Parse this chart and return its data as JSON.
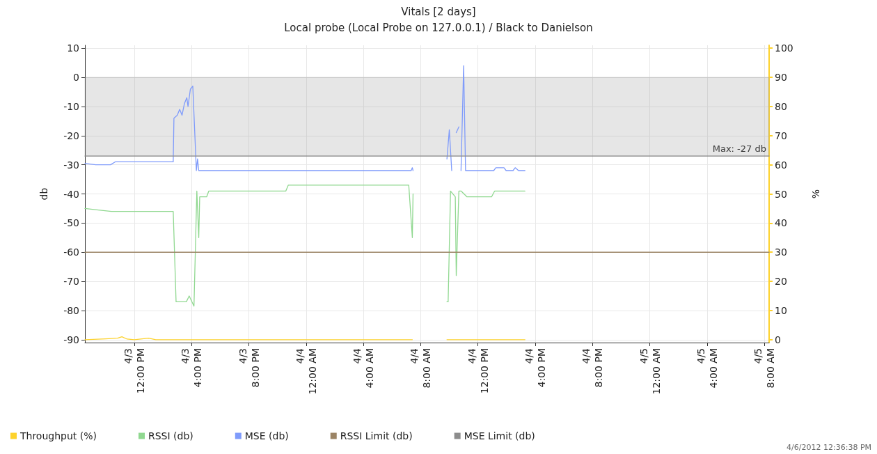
{
  "chart_data": {
    "type": "line",
    "title": "Vitals [2 days]",
    "subtitle": "Local probe (Local Probe on 127.0.0.1) / Black to Danielson",
    "ylabel": "db",
    "y2label": "%",
    "xlim": [
      "2012-04-03T08:33",
      "2012-04-05T08:20"
    ],
    "xticks": [
      {
        "value": "2012-04-03T12:00",
        "label": "4/3\n12:00 PM"
      },
      {
        "value": "2012-04-03T16:00",
        "label": "4/3\n4:00 PM"
      },
      {
        "value": "2012-04-03T20:00",
        "label": "4/3\n8:00 PM"
      },
      {
        "value": "2012-04-04T00:00",
        "label": "4/4\n12:00 AM"
      },
      {
        "value": "2012-04-04T04:00",
        "label": "4/4\n4:00 AM"
      },
      {
        "value": "2012-04-04T08:00",
        "label": "4/4\n8:00 AM"
      },
      {
        "value": "2012-04-04T12:00",
        "label": "4/4\n12:00 PM"
      },
      {
        "value": "2012-04-04T16:00",
        "label": "4/4\n4:00 PM"
      },
      {
        "value": "2012-04-04T20:00",
        "label": "4/4\n8:00 PM"
      },
      {
        "value": "2012-04-05T00:00",
        "label": "4/5\n12:00 AM"
      },
      {
        "value": "2012-04-05T04:00",
        "label": "4/5\n4:00 AM"
      },
      {
        "value": "2012-04-05T08:00",
        "label": "4/5\n8:00 AM"
      }
    ],
    "ylim": [
      -91,
      11
    ],
    "yticks": [
      -90,
      -80,
      -70,
      -60,
      -50,
      -40,
      -30,
      -20,
      -10,
      0,
      10
    ],
    "y2lim": [
      -1,
      101
    ],
    "y2ticks": [
      0,
      10,
      20,
      30,
      40,
      50,
      60,
      70,
      80,
      90,
      100
    ],
    "grid": true,
    "legend": "bottom left",
    "line_style": "solid",
    "series": [
      {
        "name": "Throughput (%)",
        "color": "#fdd22c",
        "axis": "y2",
        "x": [
          "2012-04-03T08:33",
          "2012-04-03T10:00",
          "2012-04-03T10:50",
          "2012-04-03T11:08",
          "2012-04-03T11:30",
          "2012-04-03T12:00",
          "2012-04-03T13:00",
          "2012-04-03T13:30",
          "2012-04-04T07:25",
          "2012-04-04T08:00",
          "2012-04-04T09:50",
          "2012-04-04T15:17"
        ],
        "values": [
          0,
          0.3,
          0.5,
          1,
          0.2,
          0,
          0.5,
          0,
          0,
          null,
          0,
          0
        ]
      },
      {
        "name": "RSSI (db)",
        "color": "#90d890",
        "x": [
          "2012-04-03T08:33",
          "2012-04-03T09:30",
          "2012-04-03T10:24",
          "2012-04-03T14:43",
          "2012-04-03T14:55",
          "2012-04-03T15:38",
          "2012-04-03T15:50",
          "2012-04-03T16:10",
          "2012-04-03T16:22",
          "2012-04-03T16:30",
          "2012-04-03T16:34",
          "2012-04-03T17:03",
          "2012-04-03T17:12",
          "2012-04-03T22:35",
          "2012-04-03T22:45",
          "2012-04-04T07:10",
          "2012-04-04T07:25",
          "2012-04-04T07:28",
          "2012-04-04T08:00",
          "2012-04-04T09:50",
          "2012-04-04T09:55",
          "2012-04-04T10:05",
          "2012-04-04T10:25",
          "2012-04-04T10:29",
          "2012-04-04T10:40",
          "2012-04-04T10:49",
          "2012-04-04T11:14",
          "2012-04-04T12:57",
          "2012-04-04T13:10",
          "2012-04-04T15:17"
        ],
        "values": [
          -45,
          -45.5,
          -46,
          -46,
          -77,
          -77,
          -75,
          -78.5,
          -39,
          -55,
          -41,
          -41,
          -39,
          -39,
          -37,
          -37,
          -55,
          -40,
          null,
          -77,
          -77,
          -39,
          -41,
          -68,
          -39,
          -39,
          -41,
          -41,
          -39,
          -39
        ]
      },
      {
        "name": "MSE (db)",
        "color": "#7f9bfb",
        "x": [
          "2012-04-03T08:33",
          "2012-04-03T09:18",
          "2012-04-03T10:20",
          "2012-04-03T10:40",
          "2012-04-03T14:43",
          "2012-04-03T14:46",
          "2012-04-03T15:00",
          "2012-04-03T15:10",
          "2012-04-03T15:20",
          "2012-04-03T15:30",
          "2012-04-03T15:40",
          "2012-04-03T15:45",
          "2012-04-03T15:55",
          "2012-04-03T16:05",
          "2012-04-03T16:20",
          "2012-04-03T16:25",
          "2012-04-03T16:30",
          "2012-04-04T07:20",
          "2012-04-04T07:25",
          "2012-04-04T07:28",
          "2012-04-04T08:00",
          "2012-04-04T09:50",
          "2012-04-04T10:00",
          "2012-04-04T10:10",
          "2012-04-04T10:20",
          "2012-04-04T10:29",
          "2012-04-04T10:40",
          "2012-04-04T10:45",
          "2012-04-04T10:49",
          "2012-04-04T11:00",
          "2012-04-04T11:08",
          "2012-04-04T13:06",
          "2012-04-04T13:15",
          "2012-04-04T13:49",
          "2012-04-04T13:58",
          "2012-04-04T14:27",
          "2012-04-04T14:36",
          "2012-04-04T14:50",
          "2012-04-04T15:17"
        ],
        "values": [
          -29.5,
          -30,
          -30,
          -29,
          -29,
          -14,
          -13,
          -11,
          -13,
          -9,
          -7,
          -10,
          -4,
          -3,
          -32,
          -28,
          -32,
          -32,
          -31,
          -32,
          null,
          -28,
          -18,
          -32,
          null,
          -19,
          -17,
          null,
          -32,
          4,
          -32,
          -32,
          -31,
          -31,
          -32,
          -32,
          -31,
          -32,
          -32
        ]
      },
      {
        "name": "RSSI Limit (db)",
        "color": "#9b8465",
        "x": [
          "2012-04-03T08:33",
          "2012-04-05T08:20"
        ],
        "values": [
          -60,
          -60
        ]
      },
      {
        "name": "MSE Limit (db)",
        "color": "#8c8c8c",
        "x": [
          "2012-04-03T08:33",
          "2012-04-05T08:20"
        ],
        "values": [
          -27,
          -27
        ],
        "lower": [
          -27,
          -27
        ],
        "upper": [
          0,
          0
        ]
      }
    ],
    "annotations": [
      {
        "text": "Max: -27 db",
        "x": "2012-04-05T08:20",
        "y": -27
      },
      "4/6/2012 12:36:38 PM"
    ]
  }
}
